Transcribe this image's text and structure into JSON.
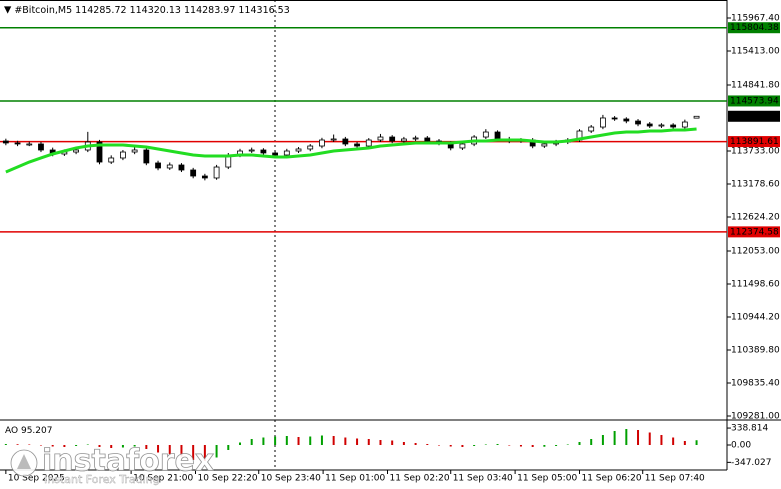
{
  "chart_data": {
    "type": "candlestick",
    "symbol": "#Bitcoin,M5",
    "open": [
      113901,
      113868,
      113851,
      113851,
      113750,
      113683,
      113716,
      113750,
      113884,
      113548,
      113616,
      113716,
      113750,
      113532,
      113448,
      113498,
      113414,
      113313,
      113280,
      113464,
      113666,
      113733,
      113750,
      113700,
      113666,
      113733,
      113767,
      113817,
      113918,
      113935,
      113851,
      113817,
      113918,
      113968,
      113901,
      113935,
      113952,
      113901,
      113868,
      113784,
      113851,
      113968,
      114052,
      113935,
      113901,
      113918,
      113817,
      113851,
      113884,
      113918,
      114069,
      114136,
      114288,
      114271,
      114237,
      114187,
      114153,
      114170,
      114136,
      114285.72
    ],
    "high": [
      113940,
      113905,
      113890,
      113885,
      113790,
      113760,
      113790,
      114055,
      113920,
      113660,
      113750,
      113800,
      113785,
      113570,
      113540,
      113530,
      113450,
      113350,
      113500,
      113700,
      113770,
      113790,
      113780,
      113735,
      113770,
      113800,
      113850,
      113955,
      114010,
      113970,
      113885,
      113950,
      114020,
      114000,
      113970,
      113990,
      113985,
      113935,
      113900,
      113885,
      114000,
      114100,
      114080,
      113970,
      113950,
      113950,
      113885,
      113920,
      113950,
      114100,
      114170,
      114340,
      114320,
      114300,
      114270,
      114220,
      114200,
      114200,
      114260,
      114320.13
    ],
    "low": [
      113830,
      113815,
      113815,
      113715,
      113645,
      113650,
      113680,
      113715,
      113510,
      113515,
      113580,
      113680,
      113495,
      113410,
      113415,
      113380,
      113275,
      113240,
      113250,
      113430,
      113630,
      113700,
      113665,
      113630,
      113630,
      113700,
      113730,
      113780,
      113885,
      113815,
      113780,
      113785,
      113885,
      113865,
      113870,
      113900,
      113870,
      113830,
      113745,
      113750,
      113815,
      113935,
      113900,
      113865,
      113870,
      113780,
      113785,
      113815,
      113850,
      113885,
      114035,
      114100,
      114240,
      114200,
      114150,
      114120,
      114120,
      114100,
      114100,
      114283.97
    ],
    "close": [
      113868,
      113851,
      113851,
      113750,
      113683,
      113716,
      113750,
      113884,
      113548,
      113616,
      113716,
      113750,
      113532,
      113448,
      113498,
      113414,
      113313,
      113280,
      113464,
      113666,
      113733,
      113750,
      113700,
      113666,
      113733,
      113767,
      113817,
      113918,
      113935,
      113851,
      113817,
      113918,
      113968,
      113901,
      113935,
      113952,
      113901,
      113868,
      113784,
      113851,
      113968,
      114052,
      113935,
      113901,
      113918,
      113817,
      113851,
      113884,
      113918,
      114069,
      114136,
      114288,
      114271,
      114237,
      114187,
      114153,
      114170,
      114136,
      114220,
      114316.53
    ],
    "up_color": "#ffffff",
    "down_color": "#000000",
    "ylim": [
      109214,
      116270
    ],
    "yticks": [
      {
        "value": 115967.4,
        "label": "115967.40"
      },
      {
        "value": 115413,
        "label": "115413.00"
      },
      {
        "value": 114841.8,
        "label": "114841.80"
      },
      {
        "value": 113733,
        "label": "113733.00"
      },
      {
        "value": 113178.6,
        "label": "113178.60"
      },
      {
        "value": 112624.2,
        "label": "112624.20"
      },
      {
        "value": 112053,
        "label": "112053.00"
      },
      {
        "value": 111498.6,
        "label": "111498.60"
      },
      {
        "value": 110944.2,
        "label": "110944.20"
      },
      {
        "value": 110389.8,
        "label": "110389.80"
      },
      {
        "value": 109835.4,
        "label": "109835.40"
      },
      {
        "value": 109281,
        "label": "109281.00"
      }
    ],
    "xlim": [
      -0.5,
      61.6
    ],
    "xticks": [
      {
        "value": 0,
        "label": "10 Sep 2025"
      },
      {
        "value": 10.7,
        "label": "10 Sep 21:00"
      },
      {
        "value": 16.2,
        "label": "10 Sep 22:20"
      },
      {
        "value": 21.6,
        "label": "10 Sep 23:40"
      },
      {
        "value": 27.1,
        "label": "11 Sep 01:00"
      },
      {
        "value": 32.6,
        "label": "11 Sep 02:20"
      },
      {
        "value": 38,
        "label": "11 Sep 03:40"
      },
      {
        "value": 43.5,
        "label": "11 Sep 05:00"
      },
      {
        "value": 49,
        "label": "11 Sep 06:20"
      },
      {
        "value": 54.4,
        "label": "11 Sep 07:40"
      }
    ],
    "moving_average": {
      "color": "#22dd22",
      "values": [
        113380,
        113464,
        113548,
        113616,
        113683,
        113733,
        113784,
        113817,
        113834,
        113834,
        113834,
        113817,
        113800,
        113767,
        113733,
        113700,
        113666,
        113649,
        113649,
        113649,
        113666,
        113666,
        113649,
        113632,
        113632,
        113649,
        113666,
        113700,
        113733,
        113750,
        113767,
        113784,
        113817,
        113834,
        113851,
        113868,
        113868,
        113868,
        113868,
        113884,
        113901,
        113901,
        113918,
        113918,
        113918,
        113901,
        113884,
        113884,
        113901,
        113935,
        113968,
        114002,
        114036,
        114052,
        114052,
        114069,
        114069,
        114086,
        114086,
        114103
      ]
    },
    "levels": [
      {
        "value": 115804.38,
        "color": "#008000"
      },
      {
        "value": 114573.94,
        "color": "#008000"
      },
      {
        "value": 113891.61,
        "color": "#e00000"
      },
      {
        "value": 112374.58,
        "color": "#e00000"
      }
    ],
    "indicator": {
      "name": "AO",
      "values": [
        20,
        15,
        10,
        -10,
        -30,
        -40,
        -20,
        10,
        -40,
        -60,
        -50,
        -30,
        -80,
        -150,
        -180,
        -230,
        -300,
        -320,
        -250,
        -100,
        50,
        120,
        150,
        170,
        180,
        160,
        170,
        190,
        180,
        150,
        130,
        120,
        100,
        90,
        60,
        40,
        20,
        -10,
        -30,
        -40,
        -20,
        10,
        20,
        -10,
        -30,
        -40,
        -35,
        -20,
        10,
        60,
        120,
        200,
        280,
        320,
        300,
        250,
        200,
        150,
        80,
        95.207
      ],
      "ylim": [
        -460,
        440
      ],
      "yticks": [
        338.814,
        {
          "value": 0,
          "label": "0.00"
        },
        -347.027
      ],
      "up_color": "#00a000",
      "down_color": "#d00000"
    },
    "watermark": {
      "brand": "instaforex",
      "tagline": "Instant Forex Trading"
    }
  }
}
